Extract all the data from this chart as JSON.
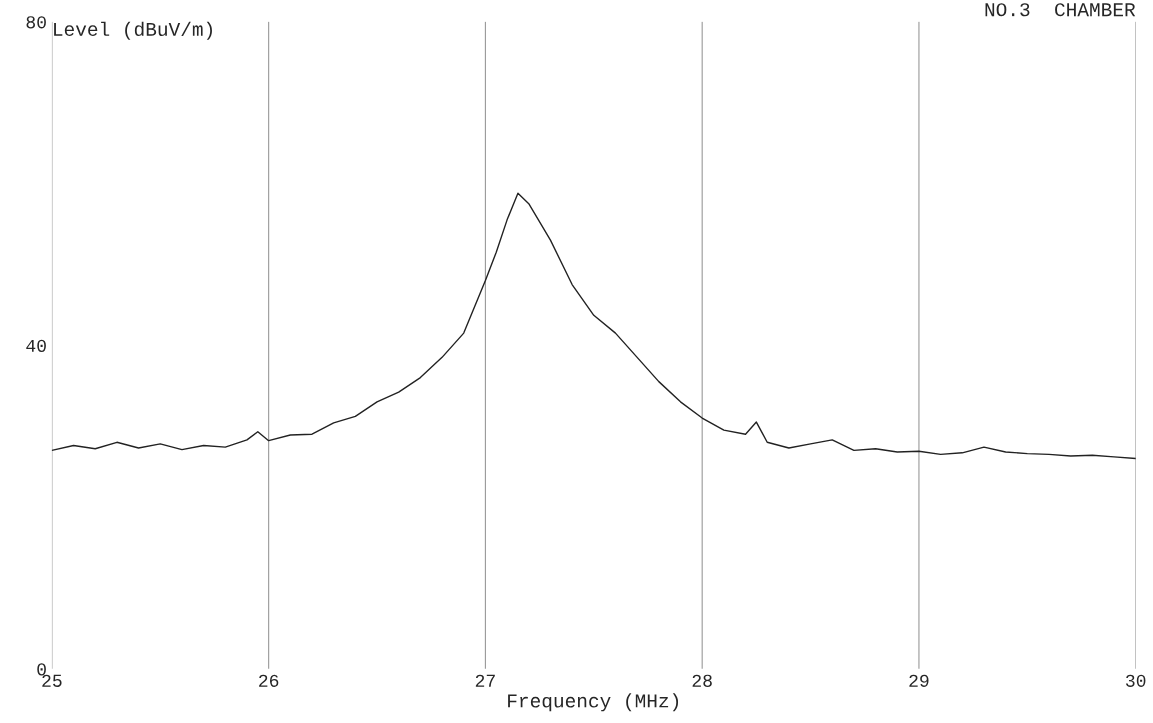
{
  "chart_data": {
    "type": "line",
    "title": "NO.3  CHAMBER",
    "xlabel": "Frequency (MHz)",
    "ylabel": "Level (dBuV/m)",
    "x": [
      25.0,
      25.1,
      25.2,
      25.3,
      25.4,
      25.5,
      25.6,
      25.7,
      25.8,
      25.9,
      25.95,
      26.0,
      26.1,
      26.2,
      26.3,
      26.4,
      26.5,
      26.6,
      26.7,
      26.8,
      26.9,
      27.0,
      27.05,
      27.1,
      27.15,
      27.2,
      27.3,
      27.4,
      27.5,
      27.6,
      27.7,
      27.8,
      27.9,
      28.0,
      28.1,
      28.2,
      28.25,
      28.3,
      28.4,
      28.5,
      28.6,
      28.7,
      28.8,
      28.9,
      29.0,
      29.1,
      29.2,
      29.3,
      29.4,
      29.5,
      29.6,
      29.7,
      29.8,
      29.9,
      30.0
    ],
    "series": [
      {
        "color": "#222222",
        "values": [
          27.0,
          27.6,
          27.2,
          28.0,
          27.3,
          27.8,
          27.1,
          27.6,
          27.4,
          28.3,
          29.3,
          28.2,
          28.9,
          29.0,
          30.4,
          31.2,
          33.0,
          34.2,
          36.0,
          38.5,
          41.5,
          48.0,
          51.5,
          55.5,
          58.8,
          57.5,
          53.0,
          47.5,
          43.7,
          41.5,
          38.5,
          35.5,
          33.0,
          31.0,
          29.5,
          29.0,
          30.5,
          28.0,
          27.3,
          27.8,
          28.3,
          27.0,
          27.2,
          26.8,
          26.9,
          26.5,
          26.7,
          27.4,
          26.8,
          26.6,
          26.5,
          26.3,
          26.4,
          26.2,
          26.0
        ]
      }
    ],
    "xlim": [
      25,
      30
    ],
    "ylim": [
      0,
      80
    ],
    "xticks": [
      25,
      26,
      27,
      28,
      29,
      30
    ],
    "yticks": [
      0,
      40,
      80
    ],
    "grid": "x",
    "marker": "none",
    "line_style": "solid"
  }
}
